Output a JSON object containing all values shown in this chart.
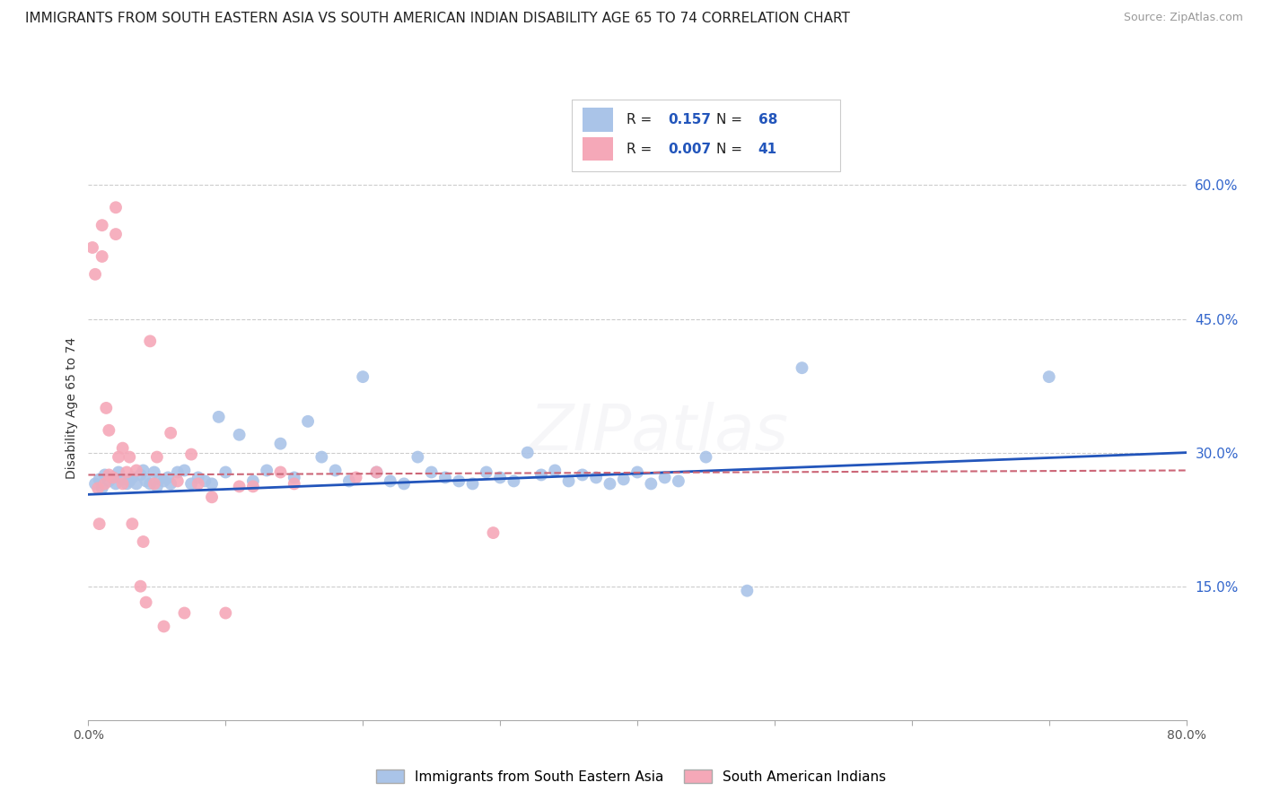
{
  "title": "IMMIGRANTS FROM SOUTH EASTERN ASIA VS SOUTH AMERICAN INDIAN DISABILITY AGE 65 TO 74 CORRELATION CHART",
  "source": "Source: ZipAtlas.com",
  "ylabel": "Disability Age 65 to 74",
  "watermark": "ZIPatlas",
  "xlim": [
    0.0,
    0.8
  ],
  "ylim": [
    0.0,
    0.7
  ],
  "yticks": [
    0.15,
    0.3,
    0.45,
    0.6
  ],
  "ytick_labels": [
    "15.0%",
    "30.0%",
    "45.0%",
    "60.0%"
  ],
  "xticks": [
    0.0,
    0.1,
    0.2,
    0.3,
    0.4,
    0.5,
    0.6,
    0.7,
    0.8
  ],
  "xtick_labels": [
    "0.0%",
    "",
    "",
    "",
    "",
    "",
    "",
    "",
    "80.0%"
  ],
  "blue_color": "#aac4e8",
  "blue_line_color": "#2255bb",
  "pink_color": "#f5a8b8",
  "pink_line_color": "#cc6677",
  "legend_blue_R": "0.157",
  "legend_blue_N": "68",
  "legend_pink_R": "0.007",
  "legend_pink_N": "41",
  "legend_label_blue": "Immigrants from South Eastern Asia",
  "legend_label_pink": "South American Indians",
  "legend_text_color": "#222222",
  "legend_value_color": "#2255bb",
  "blue_x": [
    0.005,
    0.008,
    0.01,
    0.012,
    0.015,
    0.018,
    0.02,
    0.022,
    0.025,
    0.028,
    0.03,
    0.032,
    0.035,
    0.038,
    0.04,
    0.042,
    0.045,
    0.048,
    0.05,
    0.052,
    0.055,
    0.058,
    0.06,
    0.065,
    0.07,
    0.075,
    0.08,
    0.085,
    0.09,
    0.095,
    0.1,
    0.11,
    0.12,
    0.13,
    0.14,
    0.15,
    0.16,
    0.17,
    0.18,
    0.19,
    0.2,
    0.21,
    0.22,
    0.23,
    0.24,
    0.25,
    0.26,
    0.27,
    0.28,
    0.29,
    0.3,
    0.31,
    0.32,
    0.33,
    0.34,
    0.35,
    0.36,
    0.37,
    0.38,
    0.39,
    0.4,
    0.41,
    0.42,
    0.43,
    0.45,
    0.48,
    0.52,
    0.7
  ],
  "blue_y": [
    0.265,
    0.27,
    0.26,
    0.275,
    0.268,
    0.272,
    0.265,
    0.278,
    0.27,
    0.265,
    0.268,
    0.272,
    0.265,
    0.275,
    0.28,
    0.268,
    0.265,
    0.278,
    0.262,
    0.27,
    0.268,
    0.272,
    0.265,
    0.278,
    0.28,
    0.265,
    0.272,
    0.268,
    0.265,
    0.34,
    0.278,
    0.32,
    0.268,
    0.28,
    0.31,
    0.272,
    0.335,
    0.295,
    0.28,
    0.268,
    0.385,
    0.278,
    0.268,
    0.265,
    0.295,
    0.278,
    0.272,
    0.268,
    0.265,
    0.278,
    0.272,
    0.268,
    0.3,
    0.275,
    0.28,
    0.268,
    0.275,
    0.272,
    0.265,
    0.27,
    0.278,
    0.265,
    0.272,
    0.268,
    0.295,
    0.145,
    0.395,
    0.385
  ],
  "pink_x": [
    0.003,
    0.005,
    0.007,
    0.008,
    0.01,
    0.01,
    0.012,
    0.013,
    0.015,
    0.015,
    0.018,
    0.02,
    0.02,
    0.022,
    0.025,
    0.025,
    0.028,
    0.03,
    0.032,
    0.035,
    0.038,
    0.04,
    0.042,
    0.045,
    0.048,
    0.05,
    0.055,
    0.06,
    0.065,
    0.07,
    0.075,
    0.08,
    0.09,
    0.1,
    0.11,
    0.12,
    0.14,
    0.15,
    0.195,
    0.21,
    0.295
  ],
  "pink_y": [
    0.53,
    0.5,
    0.26,
    0.22,
    0.555,
    0.52,
    0.265,
    0.35,
    0.325,
    0.275,
    0.272,
    0.575,
    0.545,
    0.295,
    0.305,
    0.265,
    0.278,
    0.295,
    0.22,
    0.28,
    0.15,
    0.2,
    0.132,
    0.425,
    0.265,
    0.295,
    0.105,
    0.322,
    0.268,
    0.12,
    0.298,
    0.265,
    0.25,
    0.12,
    0.262,
    0.262,
    0.278,
    0.265,
    0.272,
    0.278,
    0.21
  ],
  "blue_trend_x": [
    0.0,
    0.8
  ],
  "blue_trend_y": [
    0.253,
    0.3
  ],
  "pink_trend_x": [
    0.0,
    0.8
  ],
  "pink_trend_y": [
    0.275,
    0.28
  ],
  "title_fontsize": 11,
  "axis_label_fontsize": 10,
  "tick_fontsize": 10,
  "source_fontsize": 9,
  "watermark_fontsize": 52,
  "watermark_alpha": 0.12,
  "dot_size": 100,
  "background_color": "#ffffff",
  "grid_color": "#cccccc",
  "axis_color": "#aaaaaa",
  "right_ytick_color": "#3366cc"
}
